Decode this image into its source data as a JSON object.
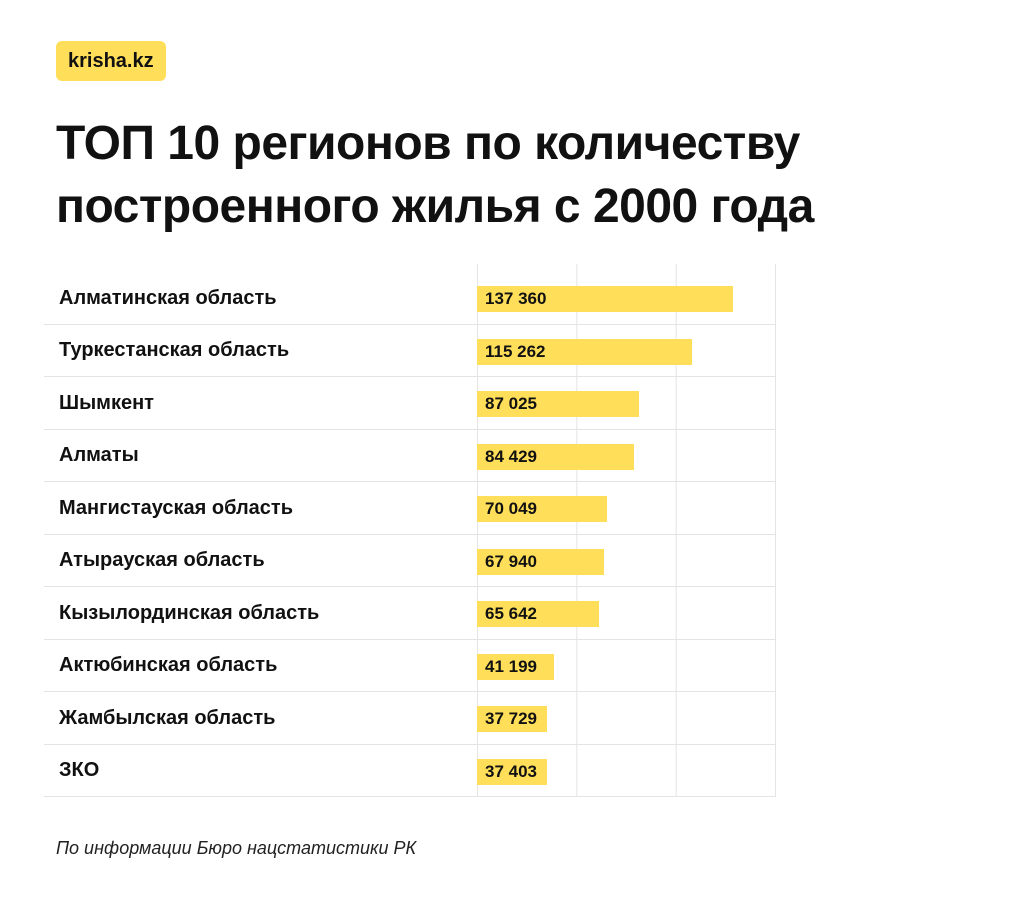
{
  "logo": "krisha.kz",
  "title": "ТОП 10 регионов по количеству построенного жилья с 2000 года",
  "source": "По информации Бюро нацстатистики РК",
  "colors": {
    "bar": "#FFDF5A",
    "grid": "#e4e4e4"
  },
  "chart_data": {
    "type": "bar",
    "orientation": "horizontal",
    "categories": [
      "Алматинская область",
      "Туркестанская область",
      "Шымкент",
      "Алматы",
      "Мангистауская область",
      "Атырауская область",
      "Кызылординская область",
      "Актюбинская область",
      "Жамбылская область",
      "ЗКО"
    ],
    "values": [
      137360,
      115262,
      87025,
      84429,
      70049,
      67940,
      65642,
      41199,
      37729,
      37403
    ],
    "value_labels": [
      "137 360",
      "115 262",
      "87 025",
      "84 429",
      "70 049",
      "67 940",
      "65 642",
      "41 199",
      "37 729",
      "37 403"
    ],
    "xlim": [
      0,
      160000
    ],
    "gridlines": [
      0,
      53333,
      106667,
      160000
    ],
    "grid": true,
    "legend": "none"
  }
}
